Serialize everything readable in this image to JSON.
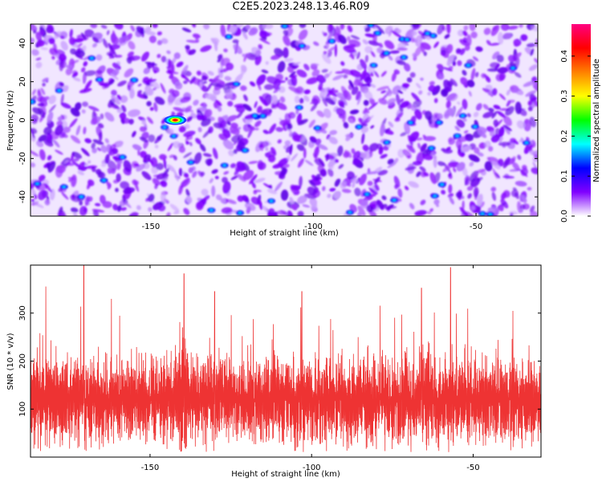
{
  "title": "C2E5.2023.248.13.46.R09",
  "chart_data": [
    {
      "type": "heatmap",
      "xlabel": "Height of straight line (km)",
      "ylabel": "Frequency (Hz)",
      "xlim": [
        -187,
        -31
      ],
      "ylim": [
        -50,
        50
      ],
      "x_ticks": [
        -150,
        -100,
        -50
      ],
      "y_ticks": [
        -40,
        -20,
        0,
        20,
        40
      ],
      "grid": false,
      "hotspot": {
        "x": -142.5,
        "y": 0,
        "amplitude": 0.45
      },
      "colorbar": {
        "label": "Normalized spectral amplitude",
        "range": [
          0,
          0.48
        ],
        "ticks": [
          0.0,
          0.1,
          0.2,
          0.3,
          0.4
        ],
        "colormap": [
          "#ffffff",
          "#8000ff",
          "#0000ff",
          "#00ffff",
          "#00ff00",
          "#ffff00",
          "#ff8000",
          "#ff0000",
          "#ff0080"
        ]
      }
    },
    {
      "type": "line",
      "xlabel": "Height of straight line (km)",
      "ylabel": "SNR (10 * v/v)",
      "xlim": [
        -187,
        -29
      ],
      "ylim": [
        0,
        400
      ],
      "x_ticks": [
        -150,
        -100,
        -50
      ],
      "y_ticks": [
        100,
        200,
        300
      ],
      "grid": false,
      "series_color": "#ee3333",
      "baseline": 120,
      "typical_upper": 240,
      "max_value": 400
    }
  ]
}
